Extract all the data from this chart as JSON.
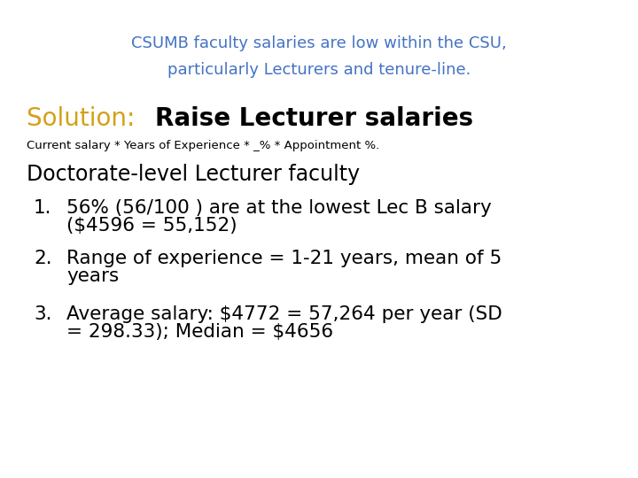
{
  "title_line1": "CSUMB faculty salaries are low within the CSU,",
  "title_line2": "particularly Lecturers and tenure-line.",
  "title_color": "#4472C4",
  "solution_label": "Solution:  ",
  "solution_label_color": "#D4A017",
  "solution_text": "Raise Lecturer salaries",
  "solution_text_color": "#000000",
  "subtitle": "Current salary * Years of Experience * _% * Appointment %.",
  "subtitle_color": "#000000",
  "body_header": "Doctorate-level Lecturer faculty",
  "body_header_color": "#000000",
  "item1_line1": "56% (56/100 ) are at the lowest Lec B salary",
  "item1_line2": "($4596 = 55,152)",
  "item2_line1": "Range of experience = 1-21 years, mean of 5",
  "item2_line2": "years",
  "item3_line1": "Average salary: $4772 = 57,264 per year (SD",
  "item3_line2": "= 298.33); Median = $4656",
  "items_color": "#000000",
  "background_color": "#ffffff",
  "title_fontsize": 13,
  "solution_label_fontsize": 20,
  "solution_text_fontsize": 20,
  "subtitle_fontsize": 9.5,
  "body_header_fontsize": 17,
  "items_fontsize": 15.5
}
